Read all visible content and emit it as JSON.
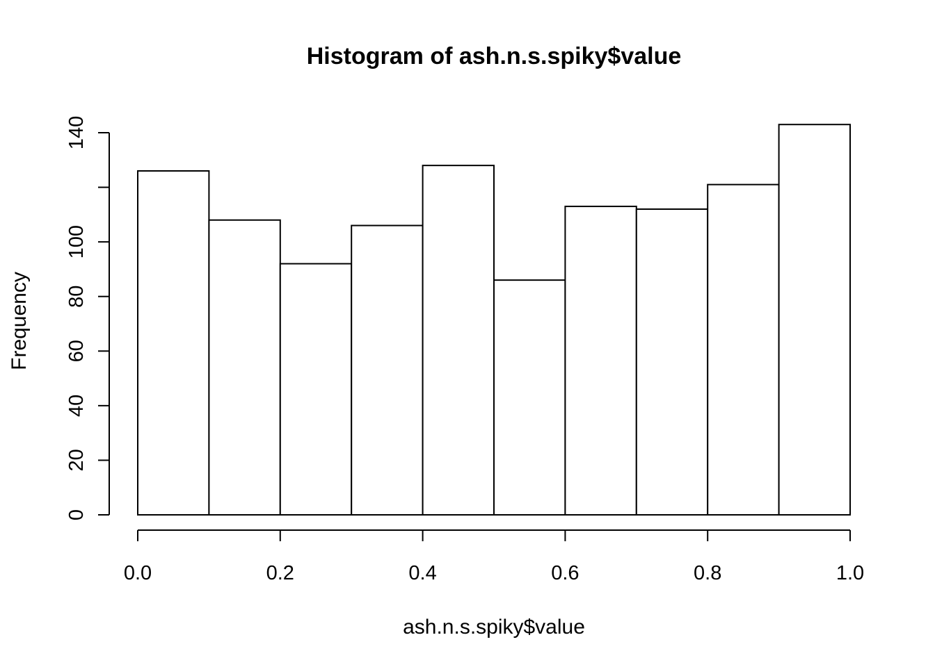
{
  "chart_data": {
    "type": "bar",
    "title": "Histogram of ash.n.s.spiky$value",
    "xlabel": "ash.n.s.spiky$value",
    "ylabel": "Frequency",
    "bins": [
      {
        "from": 0.0,
        "to": 0.1,
        "value": 126
      },
      {
        "from": 0.1,
        "to": 0.2,
        "value": 108
      },
      {
        "from": 0.2,
        "to": 0.3,
        "value": 92
      },
      {
        "from": 0.3,
        "to": 0.4,
        "value": 106
      },
      {
        "from": 0.4,
        "to": 0.5,
        "value": 128
      },
      {
        "from": 0.5,
        "to": 0.6,
        "value": 86
      },
      {
        "from": 0.6,
        "to": 0.7,
        "value": 113
      },
      {
        "from": 0.7,
        "to": 0.8,
        "value": 112
      },
      {
        "from": 0.8,
        "to": 0.9,
        "value": 121
      },
      {
        "from": 0.9,
        "to": 1.0,
        "value": 143
      }
    ],
    "xlim": [
      0.0,
      1.0
    ],
    "ylim": [
      0,
      140
    ],
    "x_ticks": [
      0.0,
      0.2,
      0.4,
      0.6,
      0.8,
      1.0
    ],
    "x_tick_labels": [
      "0.0",
      "0.2",
      "0.4",
      "0.6",
      "0.8",
      "1.0"
    ],
    "y_ticks": [
      0,
      20,
      40,
      60,
      80,
      100,
      120,
      140
    ],
    "y_tick_labels": [
      "0",
      "20",
      "40",
      "60",
      "80",
      "100",
      "",
      "140"
    ],
    "grid": false,
    "bar_fill": "#ffffff",
    "bar_stroke": "#000000"
  }
}
